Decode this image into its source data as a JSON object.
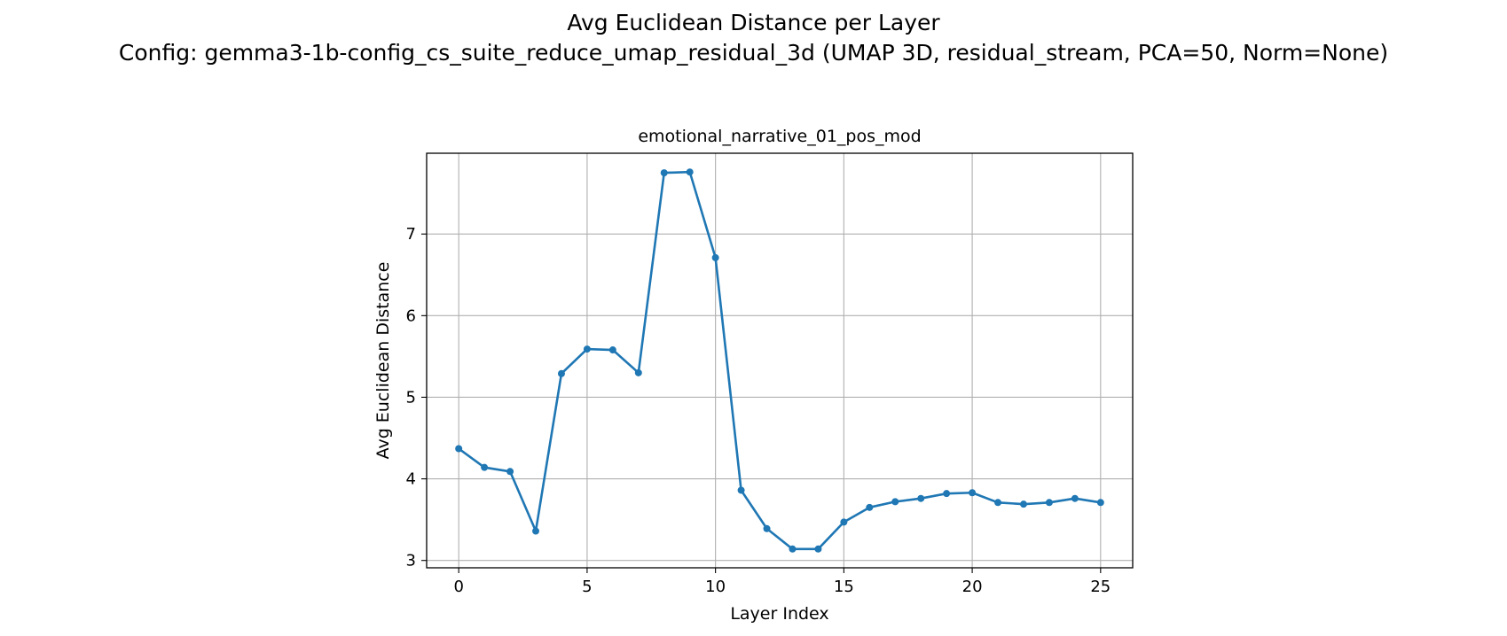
{
  "figure": {
    "suptitle_line1": "Avg Euclidean Distance per Layer",
    "suptitle_line2": "Config: gemma3-1b-config_cs_suite_reduce_umap_residual_3d (UMAP 3D, residual_stream, PCA=50, Norm=None)"
  },
  "chart_data": {
    "type": "line",
    "title": "emotional_narrative_01_pos_mod",
    "xlabel": "Layer Index",
    "ylabel": "Avg Euclidean Distance",
    "xlim": [
      -1.25,
      26.25
    ],
    "ylim": [
      2.91,
      7.99
    ],
    "xticks": [
      0,
      5,
      10,
      15,
      20,
      25
    ],
    "yticks": [
      3,
      4,
      5,
      6,
      7
    ],
    "grid": true,
    "color": "#1f77b4",
    "marker": "circle",
    "series": [
      {
        "x": [
          0,
          1,
          2,
          3,
          4,
          5,
          6,
          7,
          8,
          9,
          10,
          11,
          12,
          13,
          14,
          15,
          16,
          17,
          18,
          19,
          20,
          21,
          22,
          23,
          24,
          25
        ],
        "values": [
          4.37,
          4.14,
          4.09,
          3.36,
          5.29,
          5.59,
          5.58,
          5.3,
          7.75,
          7.76,
          6.71,
          3.86,
          3.39,
          3.14,
          3.14,
          3.47,
          3.65,
          3.72,
          3.76,
          3.82,
          3.83,
          3.71,
          3.69,
          3.71,
          3.76,
          3.71
        ]
      }
    ]
  }
}
